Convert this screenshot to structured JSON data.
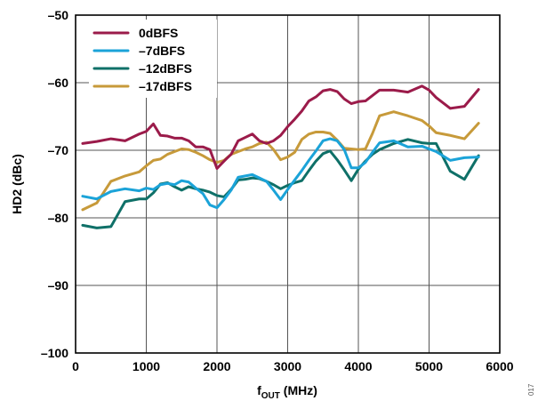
{
  "chart_data": {
    "type": "line",
    "xlabel_main": "f",
    "xlabel_sub": "OUT",
    "xlabel_unit": " (MHz)",
    "ylabel": "HD2 (dBc)",
    "xlim": [
      0,
      6000
    ],
    "ylim": [
      -100,
      -50
    ],
    "xticks": [
      0,
      1000,
      2000,
      3000,
      4000,
      5000,
      6000
    ],
    "yticks": [
      -100,
      -90,
      -80,
      -70,
      -60,
      -50
    ],
    "xtick_labels": [
      "0",
      "1000",
      "2000",
      "3000",
      "4000",
      "5000",
      "6000"
    ],
    "ytick_labels": [
      "–100",
      "–90",
      "–80",
      "–70",
      "–60",
      "–50"
    ],
    "grid": true,
    "legend_position": "top-left",
    "figure_id": "017",
    "series": [
      {
        "name": "0dBFS",
        "color": "#9b1b4a",
        "points": [
          [
            100,
            -69.0
          ],
          [
            300,
            -68.7
          ],
          [
            500,
            -68.3
          ],
          [
            700,
            -68.6
          ],
          [
            900,
            -67.6
          ],
          [
            1000,
            -67.2
          ],
          [
            1100,
            -66.1
          ],
          [
            1200,
            -67.8
          ],
          [
            1300,
            -67.9
          ],
          [
            1400,
            -68.2
          ],
          [
            1500,
            -68.2
          ],
          [
            1600,
            -68.6
          ],
          [
            1700,
            -69.5
          ],
          [
            1800,
            -69.5
          ],
          [
            1900,
            -69.9
          ],
          [
            2000,
            -72.7
          ],
          [
            2100,
            -71.6
          ],
          [
            2200,
            -70.6
          ],
          [
            2300,
            -68.6
          ],
          [
            2400,
            -68.1
          ],
          [
            2500,
            -67.6
          ],
          [
            2600,
            -68.6
          ],
          [
            2700,
            -69.0
          ],
          [
            2800,
            -68.6
          ],
          [
            2900,
            -67.8
          ],
          [
            3000,
            -66.5
          ],
          [
            3100,
            -65.4
          ],
          [
            3200,
            -64.2
          ],
          [
            3300,
            -62.7
          ],
          [
            3400,
            -62.1
          ],
          [
            3500,
            -61.2
          ],
          [
            3600,
            -61.0
          ],
          [
            3700,
            -61.3
          ],
          [
            3800,
            -62.4
          ],
          [
            3900,
            -63.1
          ],
          [
            4000,
            -62.8
          ],
          [
            4100,
            -62.7
          ],
          [
            4200,
            -61.9
          ],
          [
            4300,
            -61.1
          ],
          [
            4500,
            -61.1
          ],
          [
            4700,
            -61.4
          ],
          [
            4900,
            -60.5
          ],
          [
            5000,
            -61.1
          ],
          [
            5100,
            -62.2
          ],
          [
            5300,
            -63.8
          ],
          [
            5500,
            -63.5
          ],
          [
            5700,
            -61.0
          ]
        ]
      },
      {
        "name": "–7dBFS",
        "color": "#1ba3d8",
        "points": [
          [
            100,
            -76.8
          ],
          [
            300,
            -77.2
          ],
          [
            500,
            -76.1
          ],
          [
            700,
            -75.7
          ],
          [
            900,
            -76.0
          ],
          [
            1000,
            -75.6
          ],
          [
            1100,
            -75.8
          ],
          [
            1200,
            -75.1
          ],
          [
            1300,
            -74.9
          ],
          [
            1400,
            -75.1
          ],
          [
            1500,
            -74.5
          ],
          [
            1600,
            -74.7
          ],
          [
            1700,
            -75.6
          ],
          [
            1800,
            -76.4
          ],
          [
            1900,
            -78.1
          ],
          [
            2000,
            -78.5
          ],
          [
            2100,
            -77.3
          ],
          [
            2200,
            -75.9
          ],
          [
            2300,
            -74.0
          ],
          [
            2400,
            -73.8
          ],
          [
            2500,
            -73.6
          ],
          [
            2600,
            -74.1
          ],
          [
            2700,
            -74.6
          ],
          [
            2800,
            -75.9
          ],
          [
            2900,
            -77.3
          ],
          [
            3000,
            -75.8
          ],
          [
            3100,
            -74.4
          ],
          [
            3200,
            -73.0
          ],
          [
            3300,
            -71.5
          ],
          [
            3400,
            -70.1
          ],
          [
            3500,
            -68.6
          ],
          [
            3600,
            -68.3
          ],
          [
            3700,
            -68.6
          ],
          [
            3800,
            -69.9
          ],
          [
            3900,
            -72.6
          ],
          [
            4000,
            -72.6
          ],
          [
            4100,
            -71.8
          ],
          [
            4200,
            -70.3
          ],
          [
            4300,
            -68.9
          ],
          [
            4500,
            -68.6
          ],
          [
            4700,
            -69.5
          ],
          [
            4900,
            -69.4
          ],
          [
            5100,
            -70.2
          ],
          [
            5300,
            -71.5
          ],
          [
            5500,
            -71.1
          ],
          [
            5700,
            -71.0
          ]
        ]
      },
      {
        "name": "–12dBFS",
        "color": "#0f7068",
        "points": [
          [
            100,
            -81.1
          ],
          [
            300,
            -81.5
          ],
          [
            500,
            -81.3
          ],
          [
            700,
            -77.6
          ],
          [
            900,
            -77.2
          ],
          [
            1000,
            -77.2
          ],
          [
            1100,
            -76.3
          ],
          [
            1200,
            -75.0
          ],
          [
            1300,
            -74.8
          ],
          [
            1400,
            -75.4
          ],
          [
            1500,
            -75.9
          ],
          [
            1600,
            -75.4
          ],
          [
            1700,
            -75.7
          ],
          [
            1800,
            -75.9
          ],
          [
            1900,
            -76.2
          ],
          [
            2000,
            -76.7
          ],
          [
            2100,
            -76.9
          ],
          [
            2200,
            -75.8
          ],
          [
            2300,
            -74.4
          ],
          [
            2400,
            -74.3
          ],
          [
            2500,
            -74.1
          ],
          [
            2600,
            -74.2
          ],
          [
            2700,
            -74.6
          ],
          [
            2800,
            -75.1
          ],
          [
            2900,
            -75.7
          ],
          [
            3000,
            -75.2
          ],
          [
            3100,
            -74.8
          ],
          [
            3200,
            -74.5
          ],
          [
            3300,
            -73.0
          ],
          [
            3400,
            -71.6
          ],
          [
            3500,
            -70.5
          ],
          [
            3600,
            -70.1
          ],
          [
            3700,
            -71.4
          ],
          [
            3800,
            -72.9
          ],
          [
            3900,
            -74.5
          ],
          [
            4000,
            -72.8
          ],
          [
            4100,
            -71.6
          ],
          [
            4200,
            -70.6
          ],
          [
            4300,
            -69.9
          ],
          [
            4500,
            -69.0
          ],
          [
            4700,
            -68.4
          ],
          [
            4900,
            -68.9
          ],
          [
            5000,
            -69.0
          ],
          [
            5100,
            -69.0
          ],
          [
            5300,
            -73.1
          ],
          [
            5500,
            -74.3
          ],
          [
            5700,
            -70.8
          ]
        ]
      },
      {
        "name": "–17dBFS",
        "color": "#c79a3a",
        "points": [
          [
            100,
            -78.8
          ],
          [
            300,
            -77.8
          ],
          [
            500,
            -74.6
          ],
          [
            700,
            -73.8
          ],
          [
            900,
            -73.2
          ],
          [
            1000,
            -72.3
          ],
          [
            1100,
            -71.5
          ],
          [
            1200,
            -71.3
          ],
          [
            1300,
            -70.6
          ],
          [
            1400,
            -70.2
          ],
          [
            1500,
            -69.8
          ],
          [
            1600,
            -69.9
          ],
          [
            1700,
            -70.3
          ],
          [
            1800,
            -70.8
          ],
          [
            1900,
            -71.4
          ],
          [
            2000,
            -71.8
          ],
          [
            2100,
            -71.5
          ],
          [
            2200,
            -70.6
          ],
          [
            2300,
            -70.2
          ],
          [
            2400,
            -69.8
          ],
          [
            2500,
            -69.5
          ],
          [
            2600,
            -69.0
          ],
          [
            2700,
            -68.8
          ],
          [
            2800,
            -69.9
          ],
          [
            2900,
            -71.4
          ],
          [
            3000,
            -71.0
          ],
          [
            3100,
            -70.3
          ],
          [
            3200,
            -68.4
          ],
          [
            3300,
            -67.6
          ],
          [
            3400,
            -67.3
          ],
          [
            3500,
            -67.3
          ],
          [
            3600,
            -67.5
          ],
          [
            3700,
            -68.5
          ],
          [
            3800,
            -69.7
          ],
          [
            4000,
            -69.9
          ],
          [
            4100,
            -69.8
          ],
          [
            4200,
            -67.5
          ],
          [
            4300,
            -64.9
          ],
          [
            4500,
            -64.3
          ],
          [
            4700,
            -64.9
          ],
          [
            4900,
            -65.6
          ],
          [
            5000,
            -66.4
          ],
          [
            5100,
            -67.4
          ],
          [
            5300,
            -67.8
          ],
          [
            5500,
            -68.3
          ],
          [
            5700,
            -66.0
          ]
        ]
      }
    ]
  }
}
